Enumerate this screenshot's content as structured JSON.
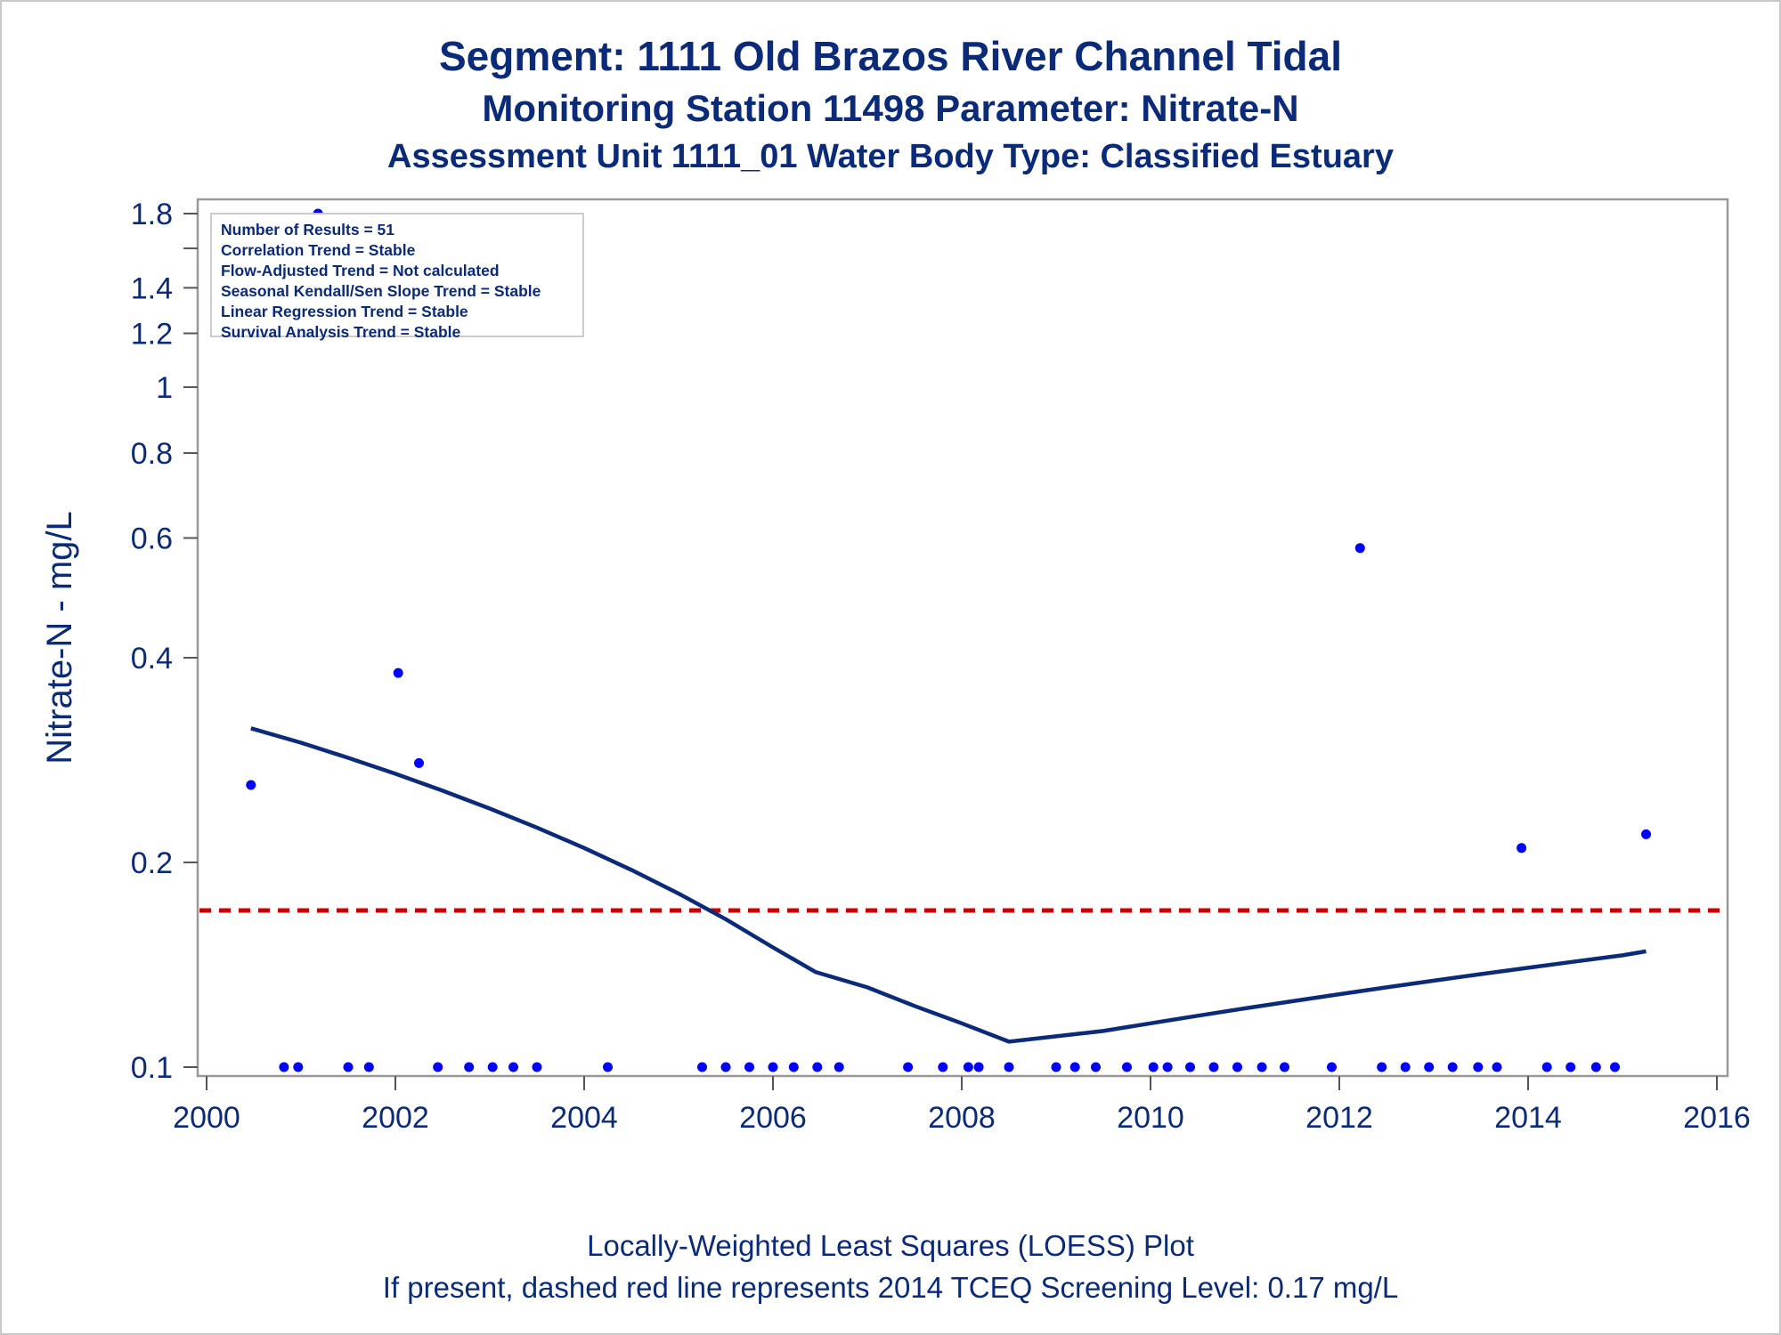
{
  "titles": {
    "line1": "Segment: 1111  Old Brazos River Channel Tidal",
    "line2": "Monitoring Station 11498 Parameter: Nitrate-N",
    "line3": "Assessment Unit 1111_01   Water Body Type: Classified Estuary"
  },
  "footnotes": {
    "line1": "Locally-Weighted Least Squares (LOESS) Plot",
    "line2": "If present, dashed red line represents 2014 TCEQ Screening Level: 0.17 mg/L"
  },
  "stats_box": {
    "lines": [
      "Number of Results = 51",
      "Correlation Trend = Stable",
      "Flow-Adjusted Trend = Not calculated",
      "Seasonal Kendall/Sen Slope Trend = Stable",
      "Linear Regression Trend = Stable",
      "Survival Analysis Trend = Stable"
    ]
  },
  "colors": {
    "text": "#0b2a78",
    "points": "#0000ff",
    "loess": "#0b2a78",
    "screening": "#cc0000",
    "axis": "#999999"
  },
  "chart_data": {
    "type": "scatter",
    "xlabel": "",
    "ylabel": "Nitrate-N - mg/L",
    "xlim": [
      2000,
      2016
    ],
    "ylim": [
      0.1,
      1.8
    ],
    "y_scale": "log",
    "x_ticks": [
      2000,
      2002,
      2004,
      2006,
      2008,
      2010,
      2012,
      2014,
      2016
    ],
    "y_ticks": [
      0.1,
      0.2,
      0.4,
      0.6,
      0.8,
      1,
      1.2,
      1.4,
      1.8
    ],
    "y_minor_ticks": [
      1.6
    ],
    "grid": false,
    "screening_level": 0.17,
    "series": [
      {
        "type": "scatter",
        "points": [
          [
            2000.47,
            0.26
          ],
          [
            2000.82,
            0.1
          ],
          [
            2000.97,
            0.1
          ],
          [
            2001.18,
            1.8
          ],
          [
            2001.5,
            0.1
          ],
          [
            2001.72,
            0.1
          ],
          [
            2002.03,
            0.38
          ],
          [
            2002.25,
            0.28
          ],
          [
            2002.45,
            0.1
          ],
          [
            2002.78,
            0.1
          ],
          [
            2003.03,
            0.1
          ],
          [
            2003.25,
            0.1
          ],
          [
            2003.5,
            0.1
          ],
          [
            2004.25,
            0.1
          ],
          [
            2005.25,
            0.1
          ],
          [
            2005.5,
            0.1
          ],
          [
            2005.75,
            0.1
          ],
          [
            2006.0,
            0.1
          ],
          [
            2006.22,
            0.1
          ],
          [
            2006.47,
            0.1
          ],
          [
            2006.7,
            0.1
          ],
          [
            2007.43,
            0.1
          ],
          [
            2007.8,
            0.1
          ],
          [
            2008.07,
            0.1
          ],
          [
            2008.18,
            0.1
          ],
          [
            2008.5,
            0.1
          ],
          [
            2009.0,
            0.1
          ],
          [
            2009.2,
            0.1
          ],
          [
            2009.42,
            0.1
          ],
          [
            2009.75,
            0.1
          ],
          [
            2010.03,
            0.1
          ],
          [
            2010.18,
            0.1
          ],
          [
            2010.42,
            0.1
          ],
          [
            2010.67,
            0.1
          ],
          [
            2010.92,
            0.1
          ],
          [
            2011.18,
            0.1
          ],
          [
            2011.42,
            0.1
          ],
          [
            2011.92,
            0.1
          ],
          [
            2012.22,
            0.58
          ],
          [
            2012.45,
            0.1
          ],
          [
            2012.7,
            0.1
          ],
          [
            2012.95,
            0.1
          ],
          [
            2013.2,
            0.1
          ],
          [
            2013.47,
            0.1
          ],
          [
            2013.67,
            0.1
          ],
          [
            2013.93,
            0.21
          ],
          [
            2014.2,
            0.1
          ],
          [
            2014.45,
            0.1
          ],
          [
            2014.72,
            0.1
          ],
          [
            2014.92,
            0.1
          ],
          [
            2015.25,
            0.22
          ]
        ]
      },
      {
        "type": "line",
        "points": [
          [
            2000.47,
            0.315
          ],
          [
            2001.0,
            0.3
          ],
          [
            2001.5,
            0.285
          ],
          [
            2002.0,
            0.27
          ],
          [
            2002.5,
            0.255
          ],
          [
            2003.0,
            0.24
          ],
          [
            2003.5,
            0.225
          ],
          [
            2004.0,
            0.21
          ],
          [
            2004.5,
            0.195
          ],
          [
            2005.0,
            0.18
          ],
          [
            2005.5,
            0.165
          ],
          [
            2006.0,
            0.15
          ],
          [
            2006.45,
            0.138
          ],
          [
            2007.0,
            0.131
          ],
          [
            2007.5,
            0.123
          ],
          [
            2008.0,
            0.116
          ],
          [
            2008.5,
            0.109
          ],
          [
            2009.0,
            0.111
          ],
          [
            2009.5,
            0.113
          ],
          [
            2010.0,
            0.116
          ],
          [
            2010.5,
            0.119
          ],
          [
            2011.0,
            0.122
          ],
          [
            2011.5,
            0.125
          ],
          [
            2012.0,
            0.128
          ],
          [
            2012.5,
            0.131
          ],
          [
            2013.0,
            0.134
          ],
          [
            2013.5,
            0.137
          ],
          [
            2014.0,
            0.14
          ],
          [
            2014.5,
            0.143
          ],
          [
            2015.0,
            0.146
          ],
          [
            2015.25,
            0.148
          ]
        ]
      }
    ]
  }
}
